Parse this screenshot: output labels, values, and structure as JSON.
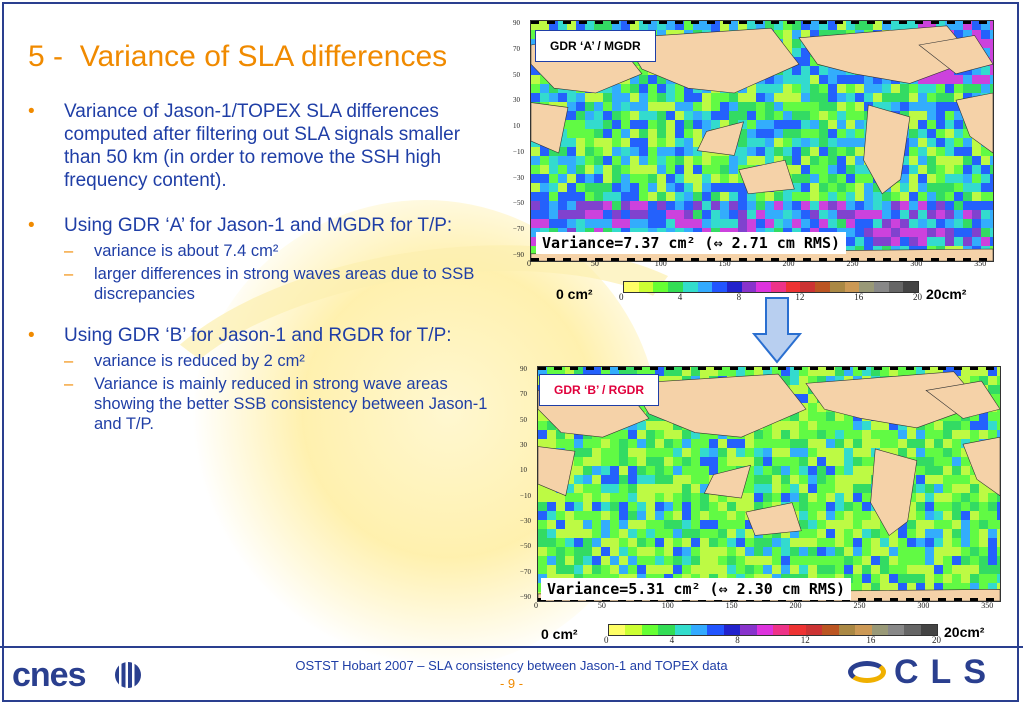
{
  "title": {
    "number": "5 -",
    "text": "Variance of SLA differences"
  },
  "bullets": [
    {
      "text": "Variance of Jason-1/TOPEX SLA differences computed after filtering out SLA signals smaller than 50 km (in order to remove the SSH high frequency content).",
      "subs": []
    },
    {
      "text": "Using GDR ‘A’ for Jason-1 and MGDR for T/P:",
      "subs": [
        " variance is about 7.4 cm²",
        " larger differences in strong waves areas due to SSB discrepancies"
      ]
    },
    {
      "text": "Using GDR ‘B’ for Jason-1 and RGDR for T/P:",
      "subs": [
        "variance is reduced by 2 cm²",
        "Variance is mainly reduced in strong wave areas showing the better SSB consistency between Jason-1 and T/P."
      ]
    }
  ],
  "bullet_symbol": "•",
  "sub_symbol": "–",
  "maps": [
    {
      "label": "GDR ‘A’ / MGDR",
      "label_color": "#000000",
      "variance": "Variance=7.37 cm² (⇔ 2.71 cm RMS)"
    },
    {
      "label": "GDR ‘B’ / RGDR",
      "label_color": "#e0003c",
      "variance": "Variance=5.31 cm² (⇔ 2.30 cm RMS)"
    }
  ],
  "yticks": [
    "90",
    "70",
    "50",
    "30",
    "10",
    "−10",
    "−30",
    "−50",
    "−70",
    "−90"
  ],
  "xticks": [
    "0",
    "50",
    "100",
    "150",
    "200",
    "250",
    "300",
    "350"
  ],
  "colorbar": {
    "min_label": "0 cm²",
    "max_label": "20cm²",
    "ticks": [
      "0",
      "4",
      "8",
      "12",
      "16",
      "20"
    ],
    "colors": [
      "#ffff66",
      "#ccff33",
      "#66ff33",
      "#33dd55",
      "#33ddcc",
      "#33aaff",
      "#2255ff",
      "#2222cc",
      "#8833cc",
      "#dd33dd",
      "#ee3388",
      "#ee3333",
      "#cc3333",
      "#bb5522",
      "#aa8844",
      "#cc9955",
      "#999977",
      "#888888",
      "#666666",
      "#444444"
    ]
  },
  "footer": {
    "text": "OSTST Hobart 2007 – SLA consistency between Jason-1 and TOPEX data",
    "page": "- 9 -"
  },
  "logos": {
    "cnes": "cnes",
    "cls": "CLS"
  },
  "colors": {
    "accent": "#f08a00",
    "text": "#1f3ea6",
    "border": "#2a3f8f"
  }
}
